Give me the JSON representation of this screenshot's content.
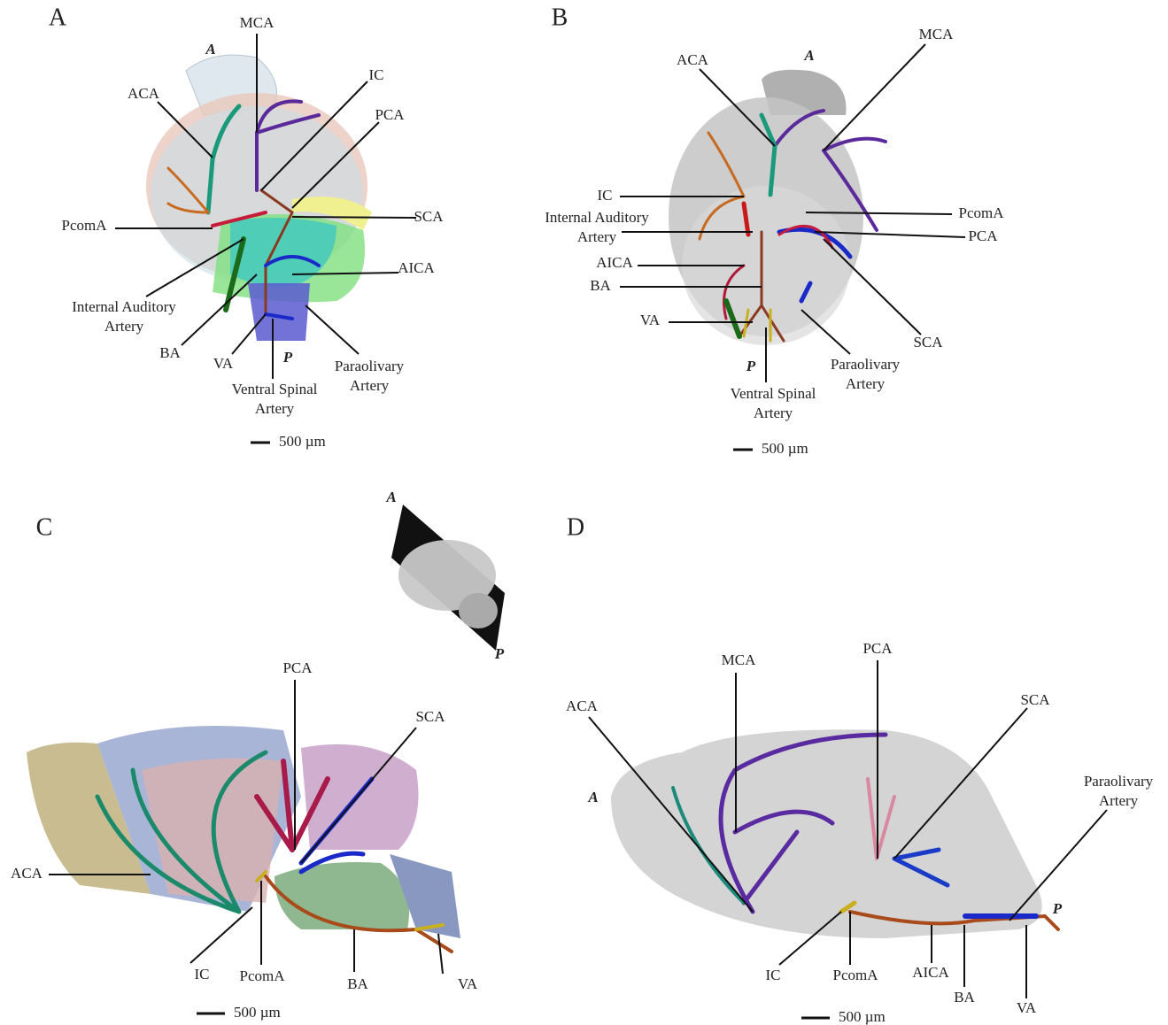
{
  "panels": [
    {
      "letter": "A",
      "orientation": [
        "A",
        "P"
      ],
      "scale_bar": "500 µm",
      "labels": [
        [
          "MCA"
        ],
        [
          "IC"
        ],
        [
          "PCA"
        ],
        [
          "ACA"
        ],
        [
          "SCA"
        ],
        [
          "PcomA"
        ],
        [
          "AICA"
        ],
        [
          "Internal Auditory",
          "Artery"
        ],
        [
          "BA"
        ],
        [
          "VA"
        ],
        [
          "Ventral Spinal",
          "Artery"
        ],
        [
          "Paraolivary",
          "Artery"
        ]
      ]
    },
    {
      "letter": "B",
      "orientation": [
        "A",
        "P"
      ],
      "scale_bar": "500 µm",
      "labels": [
        [
          "MCA"
        ],
        [
          "ACA"
        ],
        [
          "IC"
        ],
        [
          "Internal Auditory",
          "Artery"
        ],
        [
          "PcomA"
        ],
        [
          "PCA"
        ],
        [
          "AICA"
        ],
        [
          "BA"
        ],
        [
          "VA"
        ],
        [
          "SCA"
        ],
        [
          "Paraolivary",
          "Artery"
        ],
        [
          "Ventral Spinal",
          "Artery"
        ]
      ]
    },
    {
      "letter": "C",
      "orientation": [
        "A",
        "P"
      ],
      "scale_bar": "500 µm",
      "labels": [
        [
          "PCA"
        ],
        [
          "SCA"
        ],
        [
          "ACA"
        ],
        [
          "IC"
        ],
        [
          "PcomA"
        ],
        [
          "BA"
        ],
        [
          "VA"
        ]
      ]
    },
    {
      "letter": "D",
      "orientation": [
        "A",
        "P"
      ],
      "scale_bar": "500 µm",
      "labels": [
        [
          "MCA"
        ],
        [
          "PCA"
        ],
        [
          "ACA"
        ],
        [
          "SCA"
        ],
        [
          "Paraolivary",
          "Artery"
        ],
        [
          "IC"
        ],
        [
          "PcomA"
        ],
        [
          "AICA"
        ],
        [
          "BA"
        ],
        [
          "VA"
        ]
      ]
    }
  ]
}
